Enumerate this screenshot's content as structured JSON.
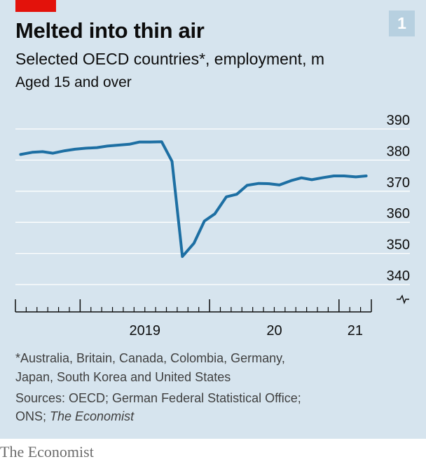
{
  "header": {
    "title": "Melted into thin air",
    "subtitle": "Selected OECD countries*, employment, m",
    "subsubtitle": "Aged 15 and over",
    "chart_number": "1"
  },
  "footer": {
    "footnote_line1": "*Australia, Britain, Canada, Colombia, Germany,",
    "footnote_line2": "Japan, South Korea and United States",
    "sources_line1": "Sources: OECD; German Federal Statistical Office;",
    "sources_prefix": "ONS; ",
    "sources_italic": "The Economist",
    "brand": "The Economist"
  },
  "colors": {
    "background": "#d6e4ee",
    "line": "#1d6fa3",
    "accent_red": "#e3120b"
  },
  "chart_data": {
    "type": "line",
    "title": "Melted into thin air",
    "subtitle": "Selected OECD countries*, employment, m",
    "ylabel": "",
    "xlabel": "",
    "ylim": [
      340,
      390
    ],
    "xlim": [
      2018.5,
      2021.25
    ],
    "yticks": [
      390,
      380,
      370,
      360,
      350,
      340
    ],
    "xtick_labels": [
      {
        "label": "2019",
        "x": 2019.0
      },
      {
        "label": "20",
        "x": 2020.0
      },
      {
        "label": "21",
        "x": 2021.0
      }
    ],
    "axis_break": true,
    "grid": true,
    "series": [
      {
        "x": [
          2018.54,
          2018.63,
          2018.71,
          2018.79,
          2018.88,
          2018.96,
          2019.04,
          2019.13,
          2019.21,
          2019.29,
          2019.38,
          2019.46,
          2019.54,
          2019.63,
          2019.71,
          2019.79,
          2019.88,
          2019.96,
          2020.04,
          2020.13,
          2020.21,
          2020.29,
          2020.38,
          2020.46,
          2020.54,
          2020.63,
          2020.71,
          2020.79,
          2020.88,
          2020.96,
          2021.04,
          2021.13,
          2021.21
        ],
        "values": [
          381.8,
          382.5,
          382.7,
          382.2,
          383.0,
          383.5,
          383.8,
          384.0,
          384.5,
          384.8,
          385.1,
          385.8,
          385.8,
          385.9,
          379.6,
          349.0,
          353.3,
          360.4,
          362.7,
          368.2,
          369.0,
          371.9,
          372.5,
          372.4,
          372.0,
          373.4,
          374.3,
          373.7,
          374.4,
          374.9,
          374.9,
          374.6,
          374.9
        ]
      }
    ]
  }
}
